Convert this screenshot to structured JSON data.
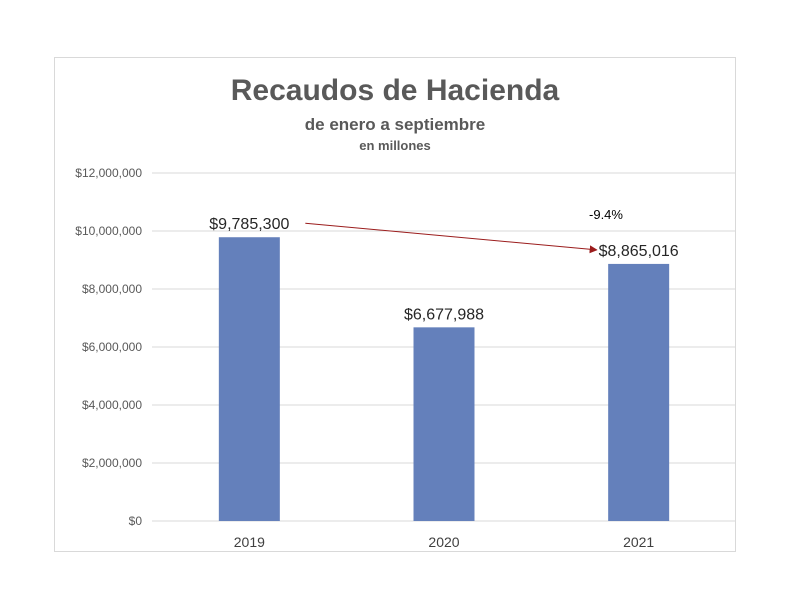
{
  "chart_data": {
    "type": "bar",
    "title": "Recaudos de Hacienda",
    "subtitle": "de enero a septiembre",
    "subtitle2": "en millones",
    "categories": [
      "2019",
      "2020",
      "2021"
    ],
    "values": [
      9785300,
      6677988,
      8865016
    ],
    "data_labels": [
      "$9,785,300",
      "$6,677,988",
      "$8,865,016"
    ],
    "ylim": [
      0,
      12000000
    ],
    "yticks": [
      0,
      2000000,
      4000000,
      6000000,
      8000000,
      10000000,
      12000000
    ],
    "ytick_labels": [
      "$0",
      "$2,000,000",
      "$4,000,000",
      "$6,000,000",
      "$8,000,000",
      "$10,000,000",
      "$12,000,000"
    ],
    "grid": true,
    "legend": "none",
    "annotation": {
      "text": "-9.4%",
      "from_category": "2019",
      "to_category": "2021"
    },
    "colors": {
      "bar": "#6480bb",
      "arrow": "#9b1c1c",
      "grid": "#d9d9d9"
    }
  }
}
